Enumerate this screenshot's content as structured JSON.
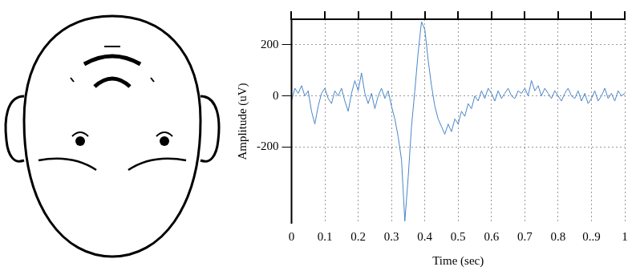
{
  "chart_data": {
    "type": "line",
    "x_label": "Time (sec)",
    "y_label": "Amplitude (uV)",
    "x": [
      0,
      0.01,
      0.02,
      0.03,
      0.04,
      0.05,
      0.06,
      0.07,
      0.08,
      0.09,
      0.1,
      0.11,
      0.12,
      0.13,
      0.14,
      0.15,
      0.16,
      0.17,
      0.18,
      0.19,
      0.2,
      0.21,
      0.22,
      0.23,
      0.24,
      0.25,
      0.26,
      0.27,
      0.28,
      0.29,
      0.3,
      0.31,
      0.32,
      0.33,
      0.34,
      0.35,
      0.36,
      0.37,
      0.38,
      0.39,
      0.4,
      0.41,
      0.42,
      0.43,
      0.44,
      0.45,
      0.46,
      0.47,
      0.48,
      0.49,
      0.5,
      0.51,
      0.52,
      0.53,
      0.54,
      0.55,
      0.56,
      0.57,
      0.58,
      0.59,
      0.6,
      0.61,
      0.62,
      0.63,
      0.64,
      0.65,
      0.66,
      0.67,
      0.68,
      0.69,
      0.7,
      0.71,
      0.72,
      0.73,
      0.74,
      0.75,
      0.76,
      0.77,
      0.78,
      0.79,
      0.8,
      0.81,
      0.82,
      0.83,
      0.84,
      0.85,
      0.86,
      0.87,
      0.88,
      0.89,
      0.9,
      0.91,
      0.92,
      0.93,
      0.94,
      0.95,
      0.96,
      0.97,
      0.98,
      0.99,
      1
    ],
    "values": [
      -20,
      30,
      10,
      40,
      0,
      20,
      -60,
      -110,
      -40,
      10,
      30,
      -10,
      -30,
      20,
      0,
      30,
      -20,
      -60,
      10,
      60,
      20,
      90,
      10,
      -30,
      10,
      -50,
      0,
      30,
      -10,
      20,
      -40,
      -90,
      -160,
      -250,
      -490,
      -320,
      -120,
      20,
      170,
      290,
      260,
      140,
      40,
      -40,
      -90,
      -120,
      -150,
      -110,
      -140,
      -90,
      -110,
      -60,
      -80,
      -30,
      -50,
      0,
      -20,
      20,
      -10,
      30,
      10,
      -20,
      20,
      -10,
      10,
      30,
      0,
      -10,
      20,
      10,
      30,
      0,
      60,
      20,
      40,
      0,
      30,
      10,
      -10,
      20,
      0,
      -20,
      10,
      30,
      0,
      -10,
      20,
      -20,
      10,
      -30,
      -10,
      20,
      -20,
      0,
      30,
      -10,
      10,
      -20,
      20,
      0,
      10
    ],
    "color": "#4a86c8",
    "xlim": [
      0,
      1
    ],
    "xticks": [
      0,
      0.1,
      0.2,
      0.3,
      0.4,
      0.5,
      0.6,
      0.7,
      0.8,
      {
        "value": 0.9,
        "label": "0..9"
      },
      1
    ],
    "ylim": [
      -500,
      300
    ],
    "yticks": [
      -200,
      0,
      200
    ],
    "grid": true
  }
}
